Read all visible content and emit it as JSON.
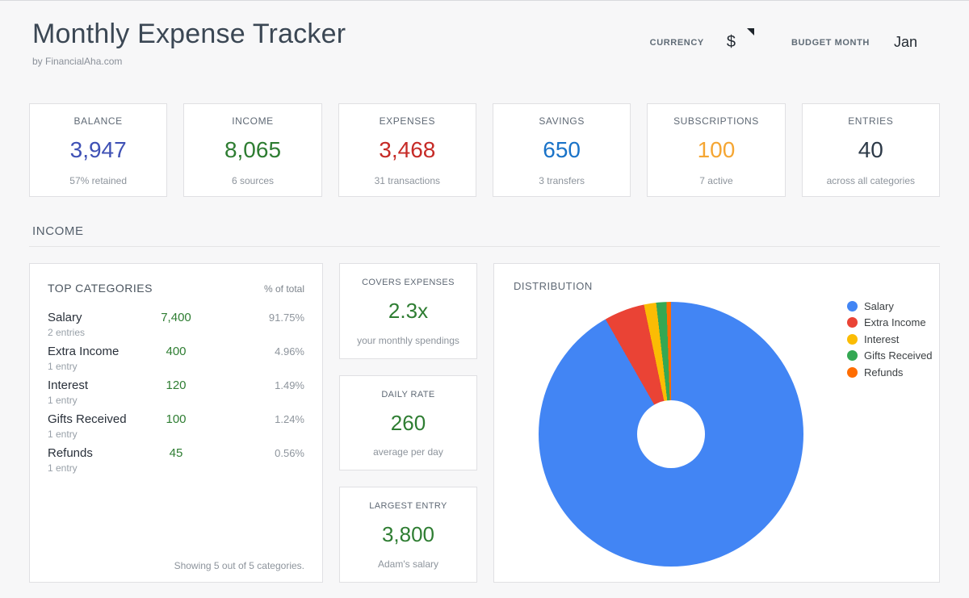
{
  "header": {
    "title": "Monthly Expense Tracker",
    "subtitle": "by FinancialAha.com",
    "currency_label": "CURRENCY",
    "currency_value": "$",
    "budget_month_label": "BUDGET MONTH",
    "budget_month_value": "Jan"
  },
  "stats": {
    "cards": [
      {
        "label": "BALANCE",
        "value": "3,947",
        "sub": "57% retained",
        "color": "#3f51b5"
      },
      {
        "label": "INCOME",
        "value": "8,065",
        "sub": "6 sources",
        "color": "#2e7d32"
      },
      {
        "label": "EXPENSES",
        "value": "3,468",
        "sub": "31 transactions",
        "color": "#c62b27"
      },
      {
        "label": "SAVINGS",
        "value": "650",
        "sub": "3 transfers",
        "color": "#1a73c8"
      },
      {
        "label": "SUBSCRIPTIONS",
        "value": "100",
        "sub": "7 active",
        "color": "#f5a633"
      },
      {
        "label": "ENTRIES",
        "value": "40",
        "sub": "across all categories",
        "color": "#2d3a48"
      }
    ]
  },
  "section": {
    "title": "INCOME"
  },
  "top_categories": {
    "title": "TOP CATEGORIES",
    "col_header": "% of total",
    "value_color": "#2e7d32",
    "rows": [
      {
        "name": "Salary",
        "entries": "2 entries",
        "value": "7,400",
        "pct": "91.75%"
      },
      {
        "name": "Extra Income",
        "entries": "1 entry",
        "value": "400",
        "pct": "4.96%"
      },
      {
        "name": "Interest",
        "entries": "1 entry",
        "value": "120",
        "pct": "1.49%"
      },
      {
        "name": "Gifts Received",
        "entries": "1 entry",
        "value": "100",
        "pct": "1.24%"
      },
      {
        "name": "Refunds",
        "entries": "1 entry",
        "value": "45",
        "pct": "0.56%"
      }
    ],
    "footer": "Showing 5 out of 5 categories."
  },
  "kpis": [
    {
      "label": "COVERS EXPENSES",
      "value": "2.3x",
      "sub": "your monthly spendings",
      "color": "#2e7d32"
    },
    {
      "label": "DAILY RATE",
      "value": "260",
      "sub": "average per day",
      "color": "#2e7d32"
    },
    {
      "label": "LARGEST ENTRY",
      "value": "3,800",
      "sub": "Adam's salary",
      "color": "#2e7d32"
    }
  ],
  "chart_data": {
    "type": "pie",
    "title": "DISTRIBUTION",
    "donut": true,
    "hole_ratio": 0.26,
    "start_angle_deg": 0,
    "direction": "clockwise",
    "legend_position": "right",
    "categories": [
      "Salary",
      "Extra Income",
      "Interest",
      "Gifts Received",
      "Refunds"
    ],
    "values": [
      7400,
      400,
      120,
      100,
      45
    ],
    "percentages": [
      91.75,
      4.96,
      1.49,
      1.24,
      0.56
    ],
    "colors": [
      "#4285f4",
      "#ea4335",
      "#fbbc04",
      "#34a853",
      "#ff6d01"
    ]
  }
}
